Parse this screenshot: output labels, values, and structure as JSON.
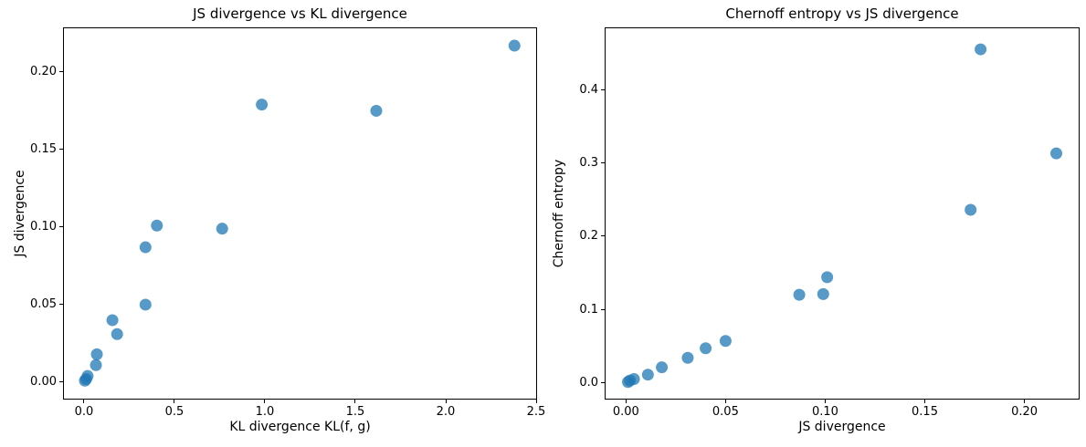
{
  "figure": {
    "background": "#ffffff",
    "dot_color": "#1f77b4",
    "dot_opacity": 0.75,
    "spine_color": "#000000"
  },
  "chart_data": [
    {
      "type": "scatter",
      "title": "JS divergence vs KL divergence",
      "xlabel": "KL divergence KL(f, g)",
      "ylabel": "JS divergence",
      "xlim": [
        -0.116,
        2.505
      ],
      "ylim": [
        -0.0112,
        0.2288
      ],
      "grid": false,
      "legend": false,
      "xticks": {
        "values": [
          0.0,
          0.5,
          1.0,
          1.5,
          2.0,
          2.5
        ],
        "labels": [
          "0.0",
          "0.5",
          "1.0",
          "1.5",
          "2.0",
          "2.5"
        ]
      },
      "yticks": {
        "values": [
          0.0,
          0.05,
          0.1,
          0.15,
          0.2
        ],
        "labels": [
          "0.00",
          "0.05",
          "0.10",
          "0.15",
          "0.20"
        ]
      },
      "points": [
        [
          0.005,
          0.001
        ],
        [
          0.012,
          0.002
        ],
        [
          0.02,
          0.004
        ],
        [
          0.066,
          0.011
        ],
        [
          0.071,
          0.018
        ],
        [
          0.157,
          0.04
        ],
        [
          0.183,
          0.031
        ],
        [
          0.34,
          0.05
        ],
        [
          0.34,
          0.087
        ],
        [
          0.403,
          0.101
        ],
        [
          0.764,
          0.099
        ],
        [
          0.983,
          0.179
        ],
        [
          1.616,
          0.175
        ],
        [
          2.38,
          0.217
        ]
      ]
    },
    {
      "type": "scatter",
      "title": "Chernoff entropy vs JS divergence",
      "xlabel": "JS divergence",
      "ylabel": "Chernoff entropy",
      "xlim": [
        -0.0107,
        0.2277
      ],
      "ylim": [
        -0.023,
        0.485
      ],
      "grid": false,
      "legend": false,
      "xticks": {
        "values": [
          0.0,
          0.05,
          0.1,
          0.15,
          0.2
        ],
        "labels": [
          "0.00",
          "0.05",
          "0.10",
          "0.15",
          "0.20"
        ]
      },
      "yticks": {
        "values": [
          0.0,
          0.1,
          0.2,
          0.3,
          0.4
        ],
        "labels": [
          "0.0",
          "0.1",
          "0.2",
          "0.3",
          "0.4"
        ]
      },
      "points": [
        [
          0.001,
          0.001
        ],
        [
          0.002,
          0.003
        ],
        [
          0.004,
          0.005
        ],
        [
          0.011,
          0.011
        ],
        [
          0.018,
          0.021
        ],
        [
          0.031,
          0.034
        ],
        [
          0.04,
          0.047
        ],
        [
          0.05,
          0.057
        ],
        [
          0.087,
          0.12
        ],
        [
          0.099,
          0.121
        ],
        [
          0.101,
          0.144
        ],
        [
          0.173,
          0.236
        ],
        [
          0.178,
          0.455
        ],
        [
          0.216,
          0.313
        ]
      ]
    }
  ]
}
